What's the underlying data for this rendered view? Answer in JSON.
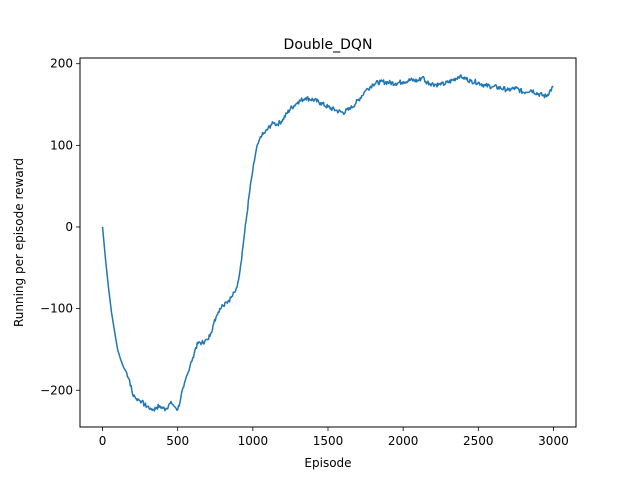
{
  "chart_data": {
    "type": "line",
    "title": "Double_DQN",
    "xlabel": "Episode",
    "ylabel": "Running per episode reward",
    "xlim": [
      -150,
      3150
    ],
    "ylim": [
      -245,
      207
    ],
    "xticks": [
      0,
      500,
      1000,
      1500,
      2000,
      2500,
      3000
    ],
    "yticks": [
      -200,
      -100,
      0,
      100,
      200
    ],
    "grid": false,
    "legend": "none",
    "series": [
      {
        "color": "#1f77b4",
        "x": [
          0,
          20,
          40,
          60,
          80,
          100,
          120,
          140,
          160,
          180,
          200,
          220,
          240,
          260,
          280,
          300,
          320,
          340,
          360,
          380,
          400,
          420,
          440,
          460,
          480,
          500,
          520,
          540,
          560,
          580,
          600,
          620,
          640,
          660,
          680,
          700,
          720,
          740,
          760,
          780,
          800,
          820,
          840,
          860,
          880,
          900,
          920,
          940,
          960,
          980,
          1000,
          1020,
          1040,
          1060,
          1080,
          1100,
          1120,
          1140,
          1160,
          1180,
          1200,
          1250,
          1300,
          1350,
          1400,
          1450,
          1500,
          1550,
          1600,
          1650,
          1700,
          1750,
          1800,
          1850,
          1900,
          1950,
          2000,
          2050,
          2100,
          2130,
          2150,
          2200,
          2250,
          2300,
          2350,
          2380,
          2400,
          2450,
          2500,
          2550,
          2600,
          2650,
          2700,
          2750,
          2800,
          2850,
          2900,
          2950,
          3000
        ],
        "y": [
          0,
          -40,
          -75,
          -105,
          -128,
          -150,
          -162,
          -172,
          -178,
          -188,
          -205,
          -210,
          -212,
          -214,
          -218,
          -220,
          -222,
          -224,
          -221,
          -219,
          -222,
          -223,
          -218,
          -216,
          -220,
          -224,
          -210,
          -196,
          -182,
          -172,
          -160,
          -148,
          -141,
          -142,
          -140,
          -138,
          -130,
          -118,
          -108,
          -100,
          -96,
          -92,
          -90,
          -85,
          -80,
          -68,
          -45,
          -15,
          15,
          45,
          70,
          92,
          105,
          112,
          115,
          120,
          125,
          127,
          126,
          128,
          132,
          145,
          153,
          158,
          156,
          152,
          147,
          143,
          140,
          145,
          155,
          167,
          175,
          178,
          177,
          176,
          178,
          180,
          179,
          184,
          178,
          175,
          174,
          177,
          182,
          186,
          183,
          179,
          177,
          173,
          172,
          170,
          168,
          170,
          165,
          168,
          163,
          160,
          172
        ]
      }
    ]
  }
}
